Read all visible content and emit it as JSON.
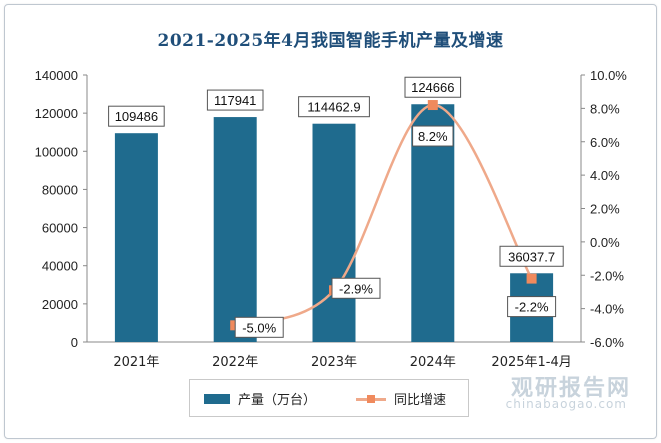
{
  "chart_data": {
    "type": "bar",
    "title": "2021-2025年4月我国智能手机产量及增速",
    "categories": [
      "2021年",
      "2022年",
      "2023年",
      "2024年",
      "2025年1-4月"
    ],
    "series": [
      {
        "name": "产量（万台）",
        "type": "bar",
        "axis": "left",
        "color": "#1f6b8e",
        "values": [
          109486,
          117941,
          114462.9,
          124666,
          36037.7
        ],
        "labels": [
          "109486",
          "117941",
          "114462.9",
          "124666",
          "36037.7"
        ]
      },
      {
        "name": "同比增速",
        "type": "line",
        "axis": "right",
        "color": "#f08a5d",
        "values": [
          null,
          -5.0,
          -2.9,
          8.2,
          -2.2
        ],
        "labels": [
          "",
          "-5.0%",
          "-2.9%",
          "8.2%",
          "-2.2%"
        ]
      }
    ],
    "y_left": {
      "min": 0,
      "max": 140000,
      "ticks": [
        "0",
        "20000",
        "40000",
        "60000",
        "80000",
        "100000",
        "120000",
        "140000"
      ]
    },
    "y_right": {
      "min": -6,
      "max": 10,
      "ticks": [
        "-6.0%",
        "-4.0%",
        "-2.0%",
        "0.0%",
        "2.0%",
        "4.0%",
        "6.0%",
        "8.0%",
        "10.0%"
      ]
    },
    "grid": false,
    "legend": "bottom"
  },
  "watermark": {
    "brand": "观研报告网",
    "url": "chinabaogao.com"
  }
}
